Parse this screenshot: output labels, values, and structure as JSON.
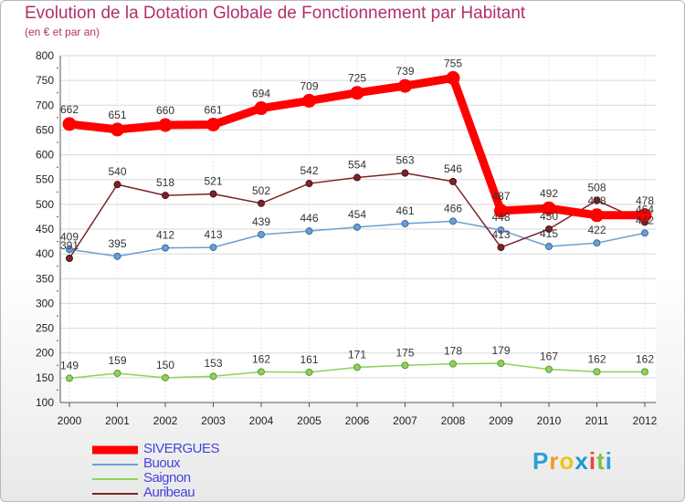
{
  "title": "Evolution de la Dotation Globale de Fonctionnement par Habitant",
  "subtitle": "(en € et par an)",
  "logo": {
    "letters": [
      "P",
      "r",
      "o",
      "x",
      "i",
      "t",
      "i"
    ],
    "colors": [
      "#2aa0d8",
      "#f39a1e",
      "#f0c419",
      "#1a9ad6",
      "#e8463a",
      "#7cc242",
      "#2aa0d8"
    ]
  },
  "chart_data": {
    "type": "line",
    "x": [
      "2000",
      "2001",
      "2002",
      "2003",
      "2004",
      "2005",
      "2006",
      "2007",
      "2008",
      "2009",
      "2010",
      "2011",
      "2012"
    ],
    "ylim": [
      100,
      800
    ],
    "yticks": [
      100,
      150,
      200,
      250,
      300,
      350,
      400,
      450,
      500,
      550,
      600,
      650,
      700,
      750,
      800
    ],
    "grid": true,
    "legend_position": "bottom-left",
    "series": [
      {
        "name": "SIVERGUES",
        "color": "#ff0000",
        "values": [
          662,
          651,
          660,
          661,
          694,
          709,
          725,
          739,
          755,
          487,
          492,
          478,
          478
        ]
      },
      {
        "name": "Buoux",
        "color": "#6a9fd4",
        "values": [
          409,
          395,
          412,
          413,
          439,
          446,
          454,
          461,
          466,
          448,
          415,
          422,
          442
        ]
      },
      {
        "name": "Saignon",
        "color": "#8fd15a",
        "values": [
          149,
          159,
          150,
          153,
          162,
          161,
          171,
          175,
          178,
          179,
          167,
          162,
          162
        ]
      },
      {
        "name": "Auribeau",
        "color": "#7a2525",
        "values": [
          391,
          540,
          518,
          521,
          502,
          542,
          554,
          563,
          546,
          413,
          450,
          508,
          464
        ]
      }
    ],
    "labels": {
      "SIVERGUES": [
        "662",
        "651",
        "660",
        "661",
        "694",
        "709",
        "725",
        "739",
        "755",
        "487",
        "492",
        "478",
        "478"
      ],
      "Buoux": [
        "409",
        "395",
        "412",
        "413",
        "439",
        "446",
        "454",
        "461",
        "466",
        "448",
        "415",
        "422",
        "442"
      ],
      "Saignon": [
        "149",
        "159",
        "150",
        "153",
        "162",
        "161",
        "171",
        "175",
        "178",
        "179",
        "167",
        "162",
        "162"
      ],
      "Auribeau": [
        "391",
        "540",
        "518",
        "521",
        "502",
        "542",
        "554",
        "563",
        "546",
        "413",
        "450",
        "508",
        "464"
      ]
    }
  }
}
